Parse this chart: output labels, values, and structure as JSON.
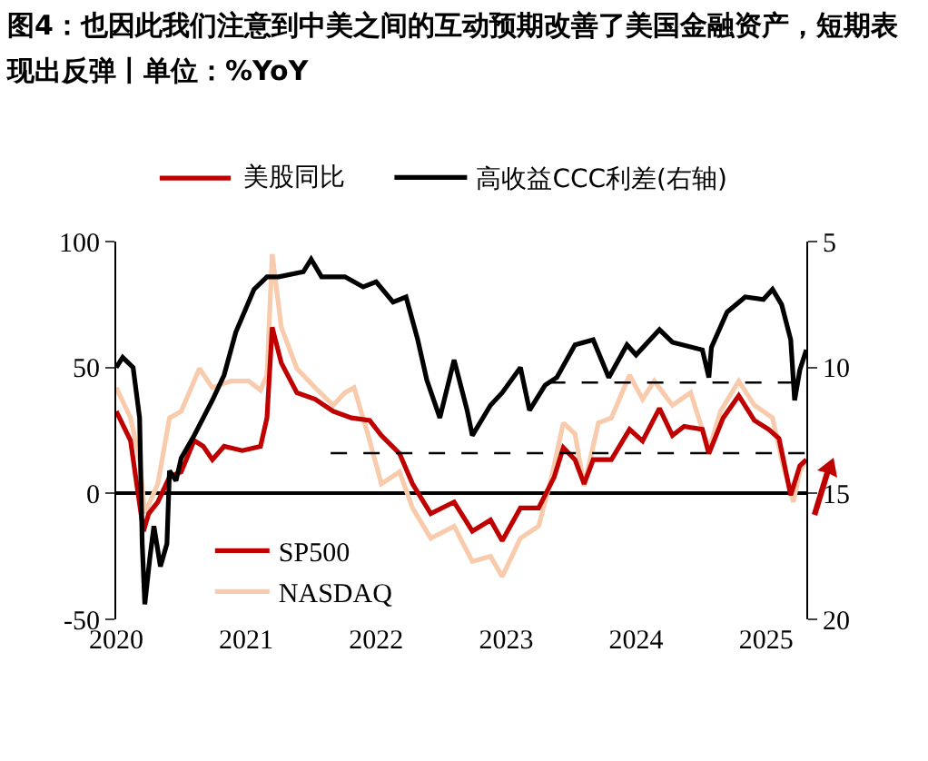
{
  "chart_data": {
    "type": "line",
    "title": "图4：也因此我们注意到中美之间的互动预期改善了美国金融资产，短期表现出反弹丨单位：%YoY",
    "legend_title": "美股同比",
    "legend": "top",
    "xlim": [
      2020,
      2025.31
    ],
    "xticks": [
      2020,
      2021,
      2022,
      2023,
      2024,
      2025
    ],
    "ylim": [
      -50,
      100
    ],
    "yticks": [
      -50,
      0,
      50,
      100
    ],
    "y2lim": [
      20,
      5
    ],
    "y2ticks": [
      5,
      10,
      15,
      20
    ],
    "series": [
      {
        "name": "NASDAQ",
        "color": "#f8cbad",
        "x": [
          2020.0,
          2020.11,
          2020.18,
          2020.22,
          2020.32,
          2020.41,
          2020.5,
          2020.64,
          2020.74,
          2020.88,
          2021.02,
          2021.11,
          2021.16,
          2021.2,
          2021.27,
          2021.39,
          2021.53,
          2021.67,
          2021.76,
          2021.83,
          2021.95,
          2022.04,
          2022.18,
          2022.28,
          2022.42,
          2022.6,
          2022.74,
          2022.88,
          2022.97,
          2023.11,
          2023.25,
          2023.35,
          2023.44,
          2023.53,
          2023.6,
          2023.71,
          2023.81,
          2023.95,
          2024.05,
          2024.14,
          2024.28,
          2024.42,
          2024.56,
          2024.65,
          2024.79,
          2024.91,
          2025.05,
          2025.12,
          2025.21,
          2025.26,
          2025.31
        ],
        "values": [
          42,
          30,
          13.4,
          -8,
          3.8,
          30,
          32.6,
          49.6,
          42,
          44.6,
          44.6,
          41,
          47,
          95,
          66,
          49.6,
          42,
          35,
          40,
          42,
          21,
          3.8,
          8.6,
          -5.8,
          -17.8,
          -13,
          -27,
          -25,
          -33,
          -17.8,
          -13,
          6.5,
          28,
          23.6,
          2.9,
          28,
          30,
          47,
          37.4,
          44.6,
          35,
          40,
          17.3,
          32.6,
          44.6,
          35,
          30,
          13.4,
          -3.4,
          8.6,
          13.4
        ]
      },
      {
        "name": "SP500",
        "color": "#c00000",
        "x": [
          2020.0,
          2020.11,
          2020.15,
          2020.21,
          2020.25,
          2020.32,
          2020.41,
          2020.5,
          2020.6,
          2020.67,
          2020.74,
          2020.83,
          2020.97,
          2021.11,
          2021.16,
          2021.2,
          2021.27,
          2021.39,
          2021.53,
          2021.67,
          2021.81,
          2021.95,
          2022.04,
          2022.18,
          2022.28,
          2022.42,
          2022.6,
          2022.74,
          2022.88,
          2022.97,
          2023.11,
          2023.25,
          2023.37,
          2023.44,
          2023.53,
          2023.6,
          2023.67,
          2023.81,
          2023.95,
          2024.05,
          2024.18,
          2024.28,
          2024.37,
          2024.51,
          2024.56,
          2024.67,
          2024.79,
          2024.91,
          2025.02,
          2025.1,
          2025.19,
          2025.26,
          2025.31
        ],
        "values": [
          32.6,
          21,
          6.5,
          -15,
          -8,
          -3.4,
          6.5,
          8.6,
          21,
          18.7,
          13.4,
          18.7,
          17,
          18.7,
          30,
          66,
          51.8,
          40,
          37.4,
          32.6,
          30,
          29,
          23,
          15.8,
          3.8,
          -8,
          -3.4,
          -15,
          -10.6,
          -18.8,
          -5.8,
          -5.8,
          6.5,
          18.2,
          13.4,
          3.8,
          13.4,
          13.4,
          25.4,
          20.8,
          33.8,
          23,
          26.6,
          25.4,
          15.8,
          30,
          38.8,
          29,
          25.4,
          21.8,
          -0.7,
          11,
          13.4
        ]
      },
      {
        "name": "高收益CCC利差(右轴)",
        "color": "#000000",
        "axis": "y2",
        "x": [
          2020.0,
          2020.05,
          2020.13,
          2020.18,
          2020.2,
          2020.22,
          2020.26,
          2020.29,
          2020.34,
          2020.39,
          2020.41,
          2020.46,
          2020.5,
          2020.6,
          2020.74,
          2020.83,
          2020.92,
          2021.06,
          2021.16,
          2021.25,
          2021.44,
          2021.5,
          2021.58,
          2021.76,
          2021.9,
          2022.0,
          2022.13,
          2022.23,
          2022.32,
          2022.39,
          2022.49,
          2022.6,
          2022.7,
          2022.74,
          2022.88,
          2022.97,
          2023.11,
          2023.18,
          2023.3,
          2023.39,
          2023.53,
          2023.67,
          2023.79,
          2023.93,
          2024.0,
          2024.18,
          2024.28,
          2024.51,
          2024.56,
          2024.58,
          2024.7,
          2024.84,
          2024.98,
          2025.05,
          2025.12,
          2025.19,
          2025.22,
          2025.26,
          2025.31
        ],
        "values": [
          10.0,
          9.6,
          10.0,
          12,
          17,
          19.4,
          17.5,
          16.3,
          17.9,
          17,
          14.1,
          14.5,
          13.6,
          12.7,
          11.3,
          10.3,
          8.6,
          6.9,
          6.4,
          6.4,
          6.2,
          5.7,
          6.4,
          6.4,
          6.8,
          6.6,
          7.4,
          7.2,
          8.9,
          10.5,
          12,
          9.7,
          11.7,
          12.7,
          11.5,
          11,
          10,
          11.7,
          10.7,
          10.4,
          9.1,
          8.9,
          10.4,
          9.1,
          9.5,
          8.5,
          9.0,
          9.3,
          10.4,
          9.2,
          7.8,
          7.2,
          7.3,
          6.9,
          7.5,
          8.9,
          11.3,
          10.1,
          9.3
        ]
      },
      {
        "type": "line",
        "color": "#000000",
        "axis": "y2",
        "line_style": "dashed",
        "x": [
          2023.33,
          2025.31
        ],
        "values": [
          10.6,
          10.6
        ]
      },
      {
        "type": "line",
        "color": "#000000",
        "axis": "y2",
        "line_style": "dashed",
        "x": [
          2021.65,
          2025.31
        ],
        "values": [
          13.4,
          13.4
        ]
      }
    ]
  }
}
